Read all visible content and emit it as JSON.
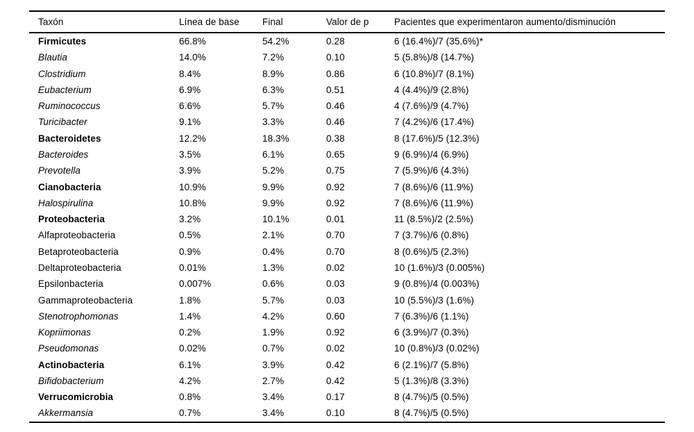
{
  "table": {
    "columns": [
      "Taxón",
      "Línea de base",
      "Final",
      "Valor de p",
      "Pacientes que experimentaron aumento/disminución"
    ],
    "rows": [
      {
        "taxon": "Firmicutes",
        "style": "bold",
        "baseline": "66.8%",
        "final": "54.2%",
        "p_value": "0.28",
        "patients": "6 (16.4%)/7 (35.6%)*"
      },
      {
        "taxon": "Blautia",
        "style": "italic",
        "baseline": "14.0%",
        "final": "7.2%",
        "p_value": "0.10",
        "patients": "5 (5.8%)/8 (14.7%)"
      },
      {
        "taxon": "Clostridium",
        "style": "italic",
        "baseline": "8.4%",
        "final": "8.9%",
        "p_value": "0.86",
        "patients": "6 (10.8%)/7 (8.1%)"
      },
      {
        "taxon": "Eubacterium",
        "style": "italic",
        "baseline": "6.9%",
        "final": "6.3%",
        "p_value": "0.51",
        "patients": "4 (4.4%)/9 (2.8%)"
      },
      {
        "taxon": "Ruminococcus",
        "style": "italic",
        "baseline": "6.6%",
        "final": "5.7%",
        "p_value": "0.46",
        "patients": "4 (7.6%)/9 (4.7%)"
      },
      {
        "taxon": "Turicibacter",
        "style": "italic",
        "baseline": "9.1%",
        "final": "3.3%",
        "p_value": "0.46",
        "patients": "7 (4.2%)/6 (17.4%)"
      },
      {
        "taxon": "Bacteroidetes",
        "style": "bold",
        "baseline": "12.2%",
        "final": "18.3%",
        "p_value": "0.38",
        "patients": "8 (17.6%)/5 (12.3%)"
      },
      {
        "taxon": "Bacteroides",
        "style": "italic",
        "baseline": "3.5%",
        "final": "6.1%",
        "p_value": "0.65",
        "patients": "9 (6.9%)/4 (6.9%)"
      },
      {
        "taxon": "Prevotella",
        "style": "italic",
        "baseline": "3.9%",
        "final": "5.2%",
        "p_value": "0.75",
        "patients": "7 (5.9%)/6 (4.3%)"
      },
      {
        "taxon": "Cianobacteria",
        "style": "bold",
        "baseline": "10.9%",
        "final": "9.9%",
        "p_value": "0.92",
        "patients": "7 (8.6%)/6 (11.9%)"
      },
      {
        "taxon": "Halospirulina",
        "style": "italic",
        "baseline": "10.8%",
        "final": "9.9%",
        "p_value": "0.92",
        "patients": "7 (8.6%)/6 (11.9%)"
      },
      {
        "taxon": "Proteobacteria",
        "style": "bold",
        "baseline": "3.2%",
        "final": "10.1%",
        "p_value": "0.01",
        "patients": "11 (8.5%)/2 (2.5%)"
      },
      {
        "taxon": "Alfaproteobacteria",
        "style": "normal",
        "baseline": "0.5%",
        "final": "2.1%",
        "p_value": "0.70",
        "patients": "7 (3.7%)/6 (0.8%)"
      },
      {
        "taxon": "Betaproteobacteria",
        "style": "normal",
        "baseline": "0.9%",
        "final": "0.4%",
        "p_value": "0.70",
        "patients": "8 (0.6%)/5 (2.3%)"
      },
      {
        "taxon": "Deltaproteobacteria",
        "style": "normal",
        "baseline": "0.01%",
        "final": "1.3%",
        "p_value": "0.02",
        "patients": "10 (1.6%)/3 (0.005%)"
      },
      {
        "taxon": "Epsilonbacteria",
        "style": "normal",
        "baseline": "0.007%",
        "final": "0.6%",
        "p_value": "0.03",
        "patients": "9 (0.8%)/4 (0.003%)"
      },
      {
        "taxon": "Gammaproteobacteria",
        "style": "normal",
        "baseline": "1.8%",
        "final": "5.7%",
        "p_value": "0.03",
        "patients": "10 (5.5%)/3 (1.6%)"
      },
      {
        "taxon": "Stenotrophomonas",
        "style": "italic",
        "baseline": "1.4%",
        "final": "4.2%",
        "p_value": "0.60",
        "patients": "7 (6.3%)/6 (1.1%)"
      },
      {
        "taxon": "Kopriimonas",
        "style": "italic",
        "baseline": "0.2%",
        "final": "1.9%",
        "p_value": "0.92",
        "patients": "6 (3.9%)/7 (0.3%)"
      },
      {
        "taxon": "Pseudomonas",
        "style": "italic",
        "baseline": "0.02%",
        "final": "0.7%",
        "p_value": "0.02",
        "patients": "10 (0.8%)/3 (0.02%)"
      },
      {
        "taxon": "Actinobacteria",
        "style": "bold",
        "baseline": "6.1%",
        "final": "3.9%",
        "p_value": "0.42",
        "patients": "6 (2.1%)/7 (5.8%)"
      },
      {
        "taxon": "Bifidobacterium",
        "style": "italic",
        "baseline": "4.2%",
        "final": "2.7%",
        "p_value": "0.42",
        "patients": "5 (1.3%)/8 (3.3%)"
      },
      {
        "taxon": "Verrucomicrobia",
        "style": "bold",
        "baseline": "0.8%",
        "final": "3.4%",
        "p_value": "0.17",
        "patients": "8 (4.7%)/5 (0.5%)"
      },
      {
        "taxon": "Akkermansia",
        "style": "italic",
        "baseline": "0.7%",
        "final": "3.4%",
        "p_value": "0.10",
        "patients": "8 (4.7%)/5 (0.5%)"
      }
    ]
  }
}
